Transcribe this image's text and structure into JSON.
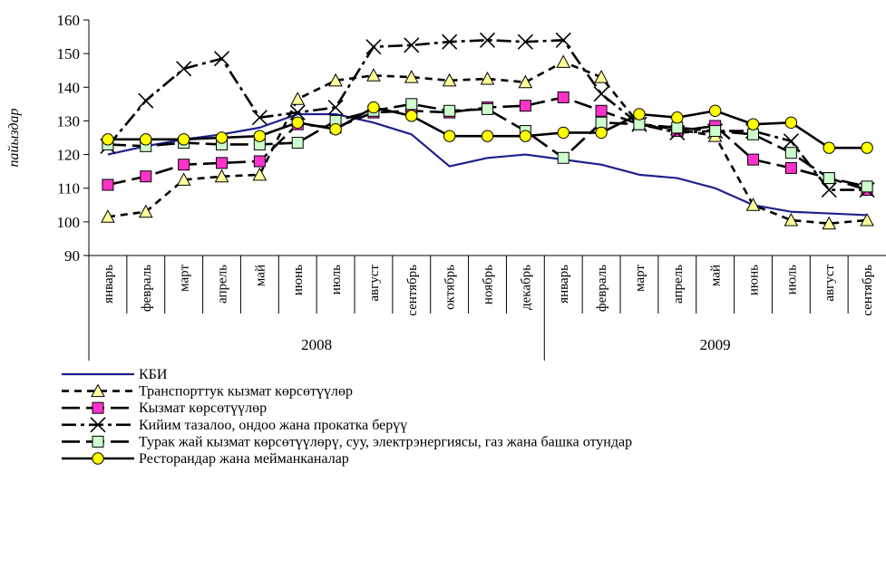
{
  "chart_data": {
    "type": "line",
    "title": "",
    "xlabel": "",
    "ylabel": "пайыздар",
    "ylim": [
      90,
      160
    ],
    "yticks": [
      90,
      100,
      110,
      120,
      130,
      140,
      150,
      160
    ],
    "grid": false,
    "legend_position": "bottom-left",
    "categories": [
      "январь",
      "февраль",
      "март",
      "апрель",
      "май",
      "июнь",
      "июль",
      "август",
      "сентябрь",
      "октябрь",
      "ноябрь",
      "декабрь",
      "январь",
      "февраль",
      "март",
      "апрель",
      "май",
      "июнь",
      "июль",
      "август",
      "сентябрь"
    ],
    "year_groups": [
      {
        "label": "2008",
        "count": 12
      },
      {
        "label": "2009",
        "count": 9
      }
    ],
    "series": [
      {
        "name": "КБИ",
        "color": "#1f1f8f",
        "dash": "solid",
        "marker": "none",
        "values": [
          120,
          122.5,
          124.5,
          126,
          128,
          132,
          132,
          129.5,
          126,
          116.5,
          119,
          120,
          118.5,
          117,
          114,
          113,
          110,
          105,
          103,
          102.5,
          102
        ]
      },
      {
        "name": "Транспорттук кызмат көрсөтүүлөр",
        "color": "#000000",
        "dash": "dashed",
        "marker": "triangle",
        "marker_fill": "#ffff99",
        "values": [
          101.5,
          103,
          112.5,
          113.5,
          114,
          136.5,
          142,
          143.5,
          143,
          142,
          142.5,
          141.5,
          147.5,
          143,
          129,
          127.5,
          125.5,
          105,
          100.5,
          99.5,
          100.5
        ]
      },
      {
        "name": "Кызмат көрсөтүүлөр",
        "color": "#000000",
        "dash": "longdash",
        "marker": "square",
        "marker_fill": "#ff33cc",
        "values": [
          111,
          113.5,
          117,
          117.5,
          118,
          129,
          128,
          132.5,
          133,
          132.5,
          134,
          134.5,
          137,
          133,
          129,
          127,
          128.5,
          118.5,
          116,
          113,
          109.5
        ]
      },
      {
        "name": "Кийим тазалоо, ондоо жана прокатка берүү",
        "color": "#000000",
        "dash": "dashdot",
        "marker": "x",
        "marker_fill": "#000000",
        "values": [
          122.5,
          136,
          145.5,
          148.5,
          131,
          132.5,
          134,
          152,
          152.5,
          153.5,
          154,
          153.5,
          154,
          138,
          129,
          126.5,
          127,
          127,
          124,
          109.5,
          109.5
        ]
      },
      {
        "name": "Турак жай кызмат көрсөтүүлөрү, суу, электрэнергиясы, газ жана башка отундар",
        "color": "#000000",
        "dash": "longdash",
        "marker": "square",
        "marker_fill": "#ccffcc",
        "values": [
          123,
          122.5,
          123.5,
          123,
          123,
          123.5,
          130,
          133,
          135,
          133,
          133.5,
          127,
          119,
          129.5,
          129,
          128,
          127,
          126,
          120.5,
          113,
          110.5
        ]
      },
      {
        "name": "Ресторандар жана мейманканалар",
        "color": "#000000",
        "dash": "solid",
        "marker": "circle",
        "marker_fill": "#ffff00",
        "values": [
          124.5,
          124.5,
          124.5,
          125,
          125.5,
          129.5,
          127.5,
          134,
          131.5,
          125.5,
          125.5,
          125.5,
          126.5,
          126.5,
          132,
          131,
          133,
          129,
          129.5,
          122,
          122
        ]
      }
    ]
  }
}
